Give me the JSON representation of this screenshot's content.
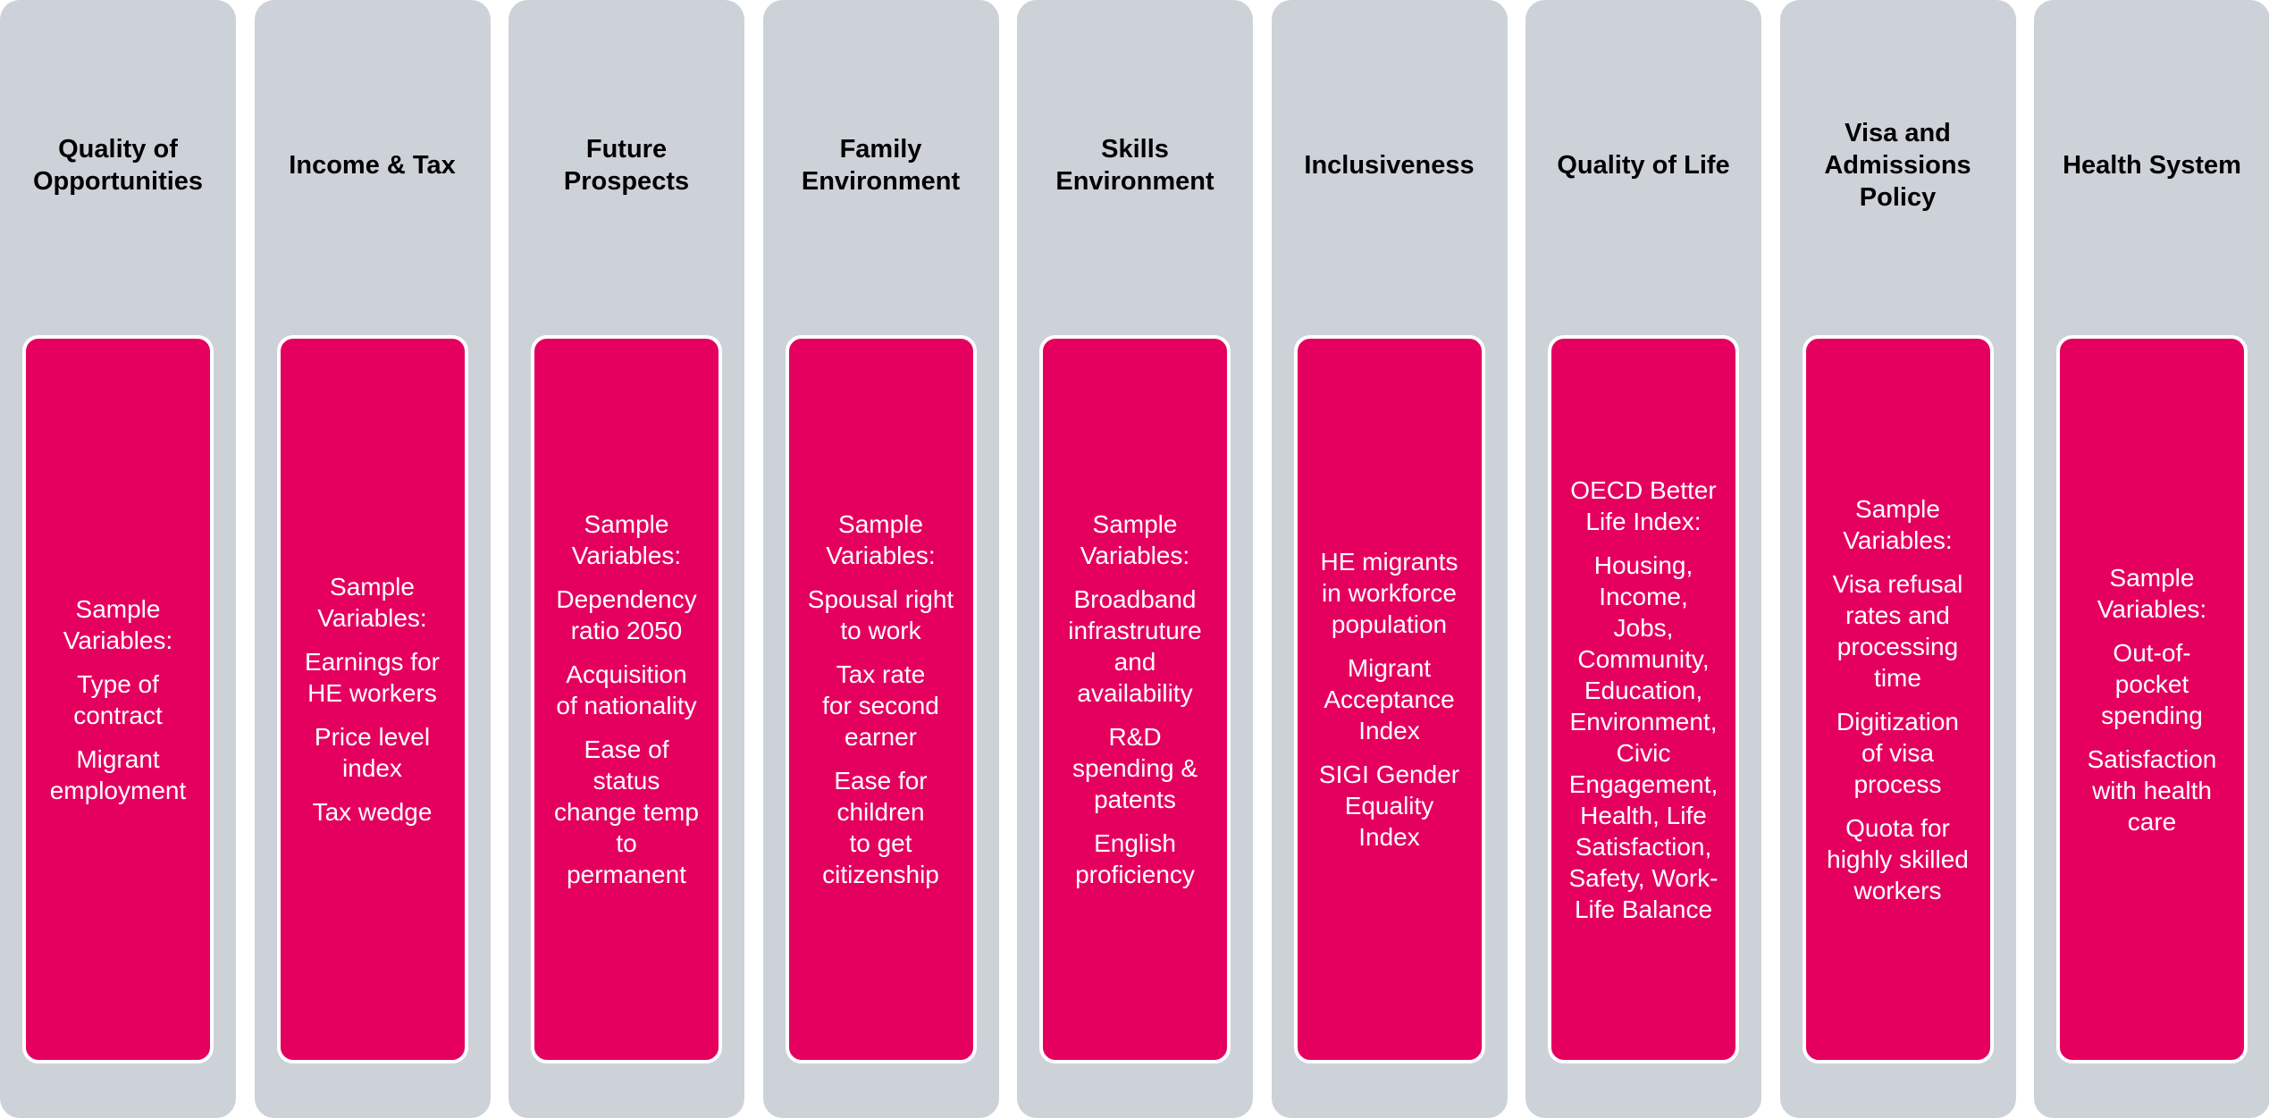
{
  "columns": [
    {
      "title": [
        "Quality of",
        "Opportunities"
      ],
      "blocks": [
        [
          "Sample",
          "Variables:"
        ],
        [
          "Type of",
          "contract"
        ],
        [
          "Migrant",
          "employment"
        ]
      ]
    },
    {
      "title": [
        "Income & Tax"
      ],
      "blocks": [
        [
          "Sample",
          "Variables:"
        ],
        [
          "Earnings for",
          "HE workers"
        ],
        [
          "Price level",
          "index"
        ],
        [
          "Tax wedge"
        ]
      ]
    },
    {
      "title": [
        "Future",
        "Prospects"
      ],
      "blocks": [
        [
          "Sample",
          "Variables:"
        ],
        [
          "Dependency",
          "ratio 2050"
        ],
        [
          "Acquisition",
          "of nationality"
        ],
        [
          "Ease of",
          "status",
          "change temp",
          "to",
          "permanent"
        ]
      ]
    },
    {
      "title": [
        "Family",
        "Environment"
      ],
      "blocks": [
        [
          "Sample",
          "Variables:"
        ],
        [
          "Spousal right",
          "to work"
        ],
        [
          "Tax rate",
          "for second",
          "earner"
        ],
        [
          "Ease for",
          "children",
          "to get",
          "citizenship"
        ]
      ]
    },
    {
      "title": [
        "Skills",
        "Environment"
      ],
      "blocks": [
        [
          "Sample",
          "Variables:"
        ],
        [
          "Broadband",
          "infrastruture",
          "and",
          "availability"
        ],
        [
          "R&D",
          "spending &",
          "patents"
        ],
        [
          "English",
          "proficiency"
        ]
      ]
    },
    {
      "title": [
        "Inclusiveness"
      ],
      "blocks": [
        [
          "HE migrants",
          "in workforce",
          "population"
        ],
        [
          "Migrant",
          "Acceptance",
          "Index"
        ],
        [
          "SIGI Gender",
          "Equality",
          "Index"
        ]
      ]
    },
    {
      "title": [
        "Quality of Life"
      ],
      "blocks": [
        [
          "OECD Better",
          "Life Index:"
        ],
        [
          "Housing,",
          "Income,",
          "Jobs,",
          "Community,",
          "Education,",
          "Environment,",
          "Civic",
          "Engagement,",
          "Health, Life",
          "Satisfaction,",
          "Safety, Work-",
          "Life Balance"
        ]
      ]
    },
    {
      "title": [
        "Visa and",
        "Admissions",
        "Policy"
      ],
      "blocks": [
        [
          "Sample",
          "Variables:"
        ],
        [
          "Visa refusal",
          "rates and",
          "processing",
          "time"
        ],
        [
          "Digitization",
          "of visa",
          "process"
        ],
        [
          "Quota for",
          "highly skilled",
          "workers"
        ]
      ]
    },
    {
      "title": [
        "Health System"
      ],
      "blocks": [
        [
          "Sample",
          "Variables:"
        ],
        [
          "Out-of-",
          "pocket",
          "spending"
        ],
        [
          "Satisfaction",
          "with health",
          "care"
        ]
      ]
    }
  ]
}
